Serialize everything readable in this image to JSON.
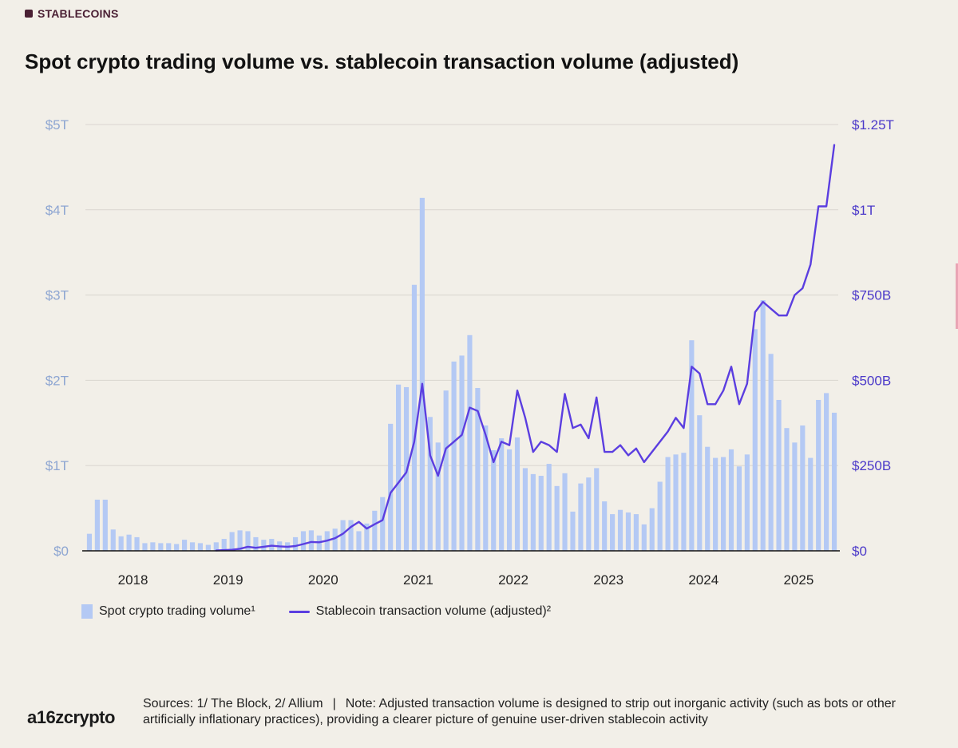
{
  "header": {
    "tag": "STABLECOINS",
    "title": "Spot crypto trading volume vs. stablecoin transaction volume (adjusted)"
  },
  "footer": {
    "logo": "a16zcrypto",
    "sources": "Sources: 1/ The Block, 2/ Allium",
    "separator": "|",
    "note": "Note: Adjusted transaction volume is designed to strip out inorganic activity (such as bots or other artificially inflationary practices), providing a clearer picture of genuine user-driven stablecoin activity"
  },
  "colors": {
    "background": "#f2efe8",
    "bar": "#b4c9f4",
    "line": "#5b3ee0",
    "left_axis_text": "#8ea6d2",
    "right_axis_text": "#4b39c9",
    "grid": "#d9d6cf"
  },
  "chart_data": {
    "type": "bar+line",
    "x_unit": "month",
    "x_start": "2018-01",
    "x_ticks": [
      "2018",
      "2019",
      "2020",
      "2021",
      "2022",
      "2023",
      "2024",
      "2025"
    ],
    "left_axis": {
      "ticks": [
        "$0",
        "$1T",
        "$2T",
        "$3T",
        "$4T",
        "$5T"
      ],
      "range": [
        0,
        5
      ],
      "unit": "trillion USD"
    },
    "right_axis": {
      "ticks": [
        "$0",
        "$250B",
        "$500B",
        "$750B",
        "$1T",
        "$1.25T"
      ],
      "range": [
        0,
        1.25
      ],
      "unit": "trillion USD"
    },
    "legend_position": "bottom-left",
    "grid": true,
    "series": [
      {
        "name": "Spot crypto trading volume¹",
        "type": "bar",
        "axis": "left",
        "values": [
          0.2,
          0.6,
          0.6,
          0.25,
          0.17,
          0.19,
          0.16,
          0.09,
          0.1,
          0.09,
          0.09,
          0.08,
          0.13,
          0.1,
          0.09,
          0.07,
          0.1,
          0.14,
          0.22,
          0.24,
          0.23,
          0.16,
          0.13,
          0.14,
          0.11,
          0.1,
          0.16,
          0.23,
          0.24,
          0.18,
          0.23,
          0.26,
          0.36,
          0.36,
          0.23,
          0.32,
          0.47,
          0.63,
          1.49,
          1.95,
          1.92,
          3.12,
          4.14,
          1.57,
          1.27,
          1.88,
          2.22,
          2.29,
          2.53,
          1.91,
          1.47,
          1.18,
          1.32,
          1.19,
          1.33,
          0.97,
          0.9,
          0.88,
          1.02,
          0.76,
          0.91,
          0.46,
          0.79,
          0.86,
          0.97,
          0.58,
          0.43,
          0.48,
          0.45,
          0.43,
          0.31,
          0.5,
          0.81,
          1.1,
          1.13,
          1.15,
          2.47,
          1.59,
          1.22,
          1.09,
          1.1,
          1.19,
          0.99,
          1.13,
          2.6,
          2.94,
          2.31,
          1.77,
          1.44,
          1.27,
          1.47,
          1.09,
          1.77,
          1.85,
          1.62
        ]
      },
      {
        "name": "Stablecoin transaction volume (adjusted)²",
        "type": "line",
        "axis": "right",
        "values": [
          null,
          null,
          null,
          null,
          null,
          null,
          null,
          null,
          null,
          null,
          null,
          null,
          null,
          null,
          null,
          null,
          0.001,
          0.002,
          0.003,
          0.006,
          0.012,
          0.009,
          0.012,
          0.015,
          0.013,
          0.012,
          0.014,
          0.02,
          0.026,
          0.025,
          0.03,
          0.037,
          0.05,
          0.07,
          0.085,
          0.065,
          0.078,
          0.09,
          0.17,
          0.2,
          0.23,
          0.32,
          0.49,
          0.28,
          0.22,
          0.3,
          0.32,
          0.34,
          0.42,
          0.41,
          0.34,
          0.26,
          0.32,
          0.31,
          0.47,
          0.39,
          0.29,
          0.32,
          0.31,
          0.29,
          0.46,
          0.36,
          0.37,
          0.33,
          0.45,
          0.29,
          0.29,
          0.31,
          0.28,
          0.3,
          0.26,
          0.29,
          0.32,
          0.35,
          0.39,
          0.36,
          0.54,
          0.52,
          0.43,
          0.43,
          0.47,
          0.54,
          0.43,
          0.49,
          0.7,
          0.73,
          0.71,
          0.69,
          0.69,
          0.75,
          0.77,
          0.84,
          1.01,
          1.01,
          1.19
        ]
      }
    ]
  }
}
